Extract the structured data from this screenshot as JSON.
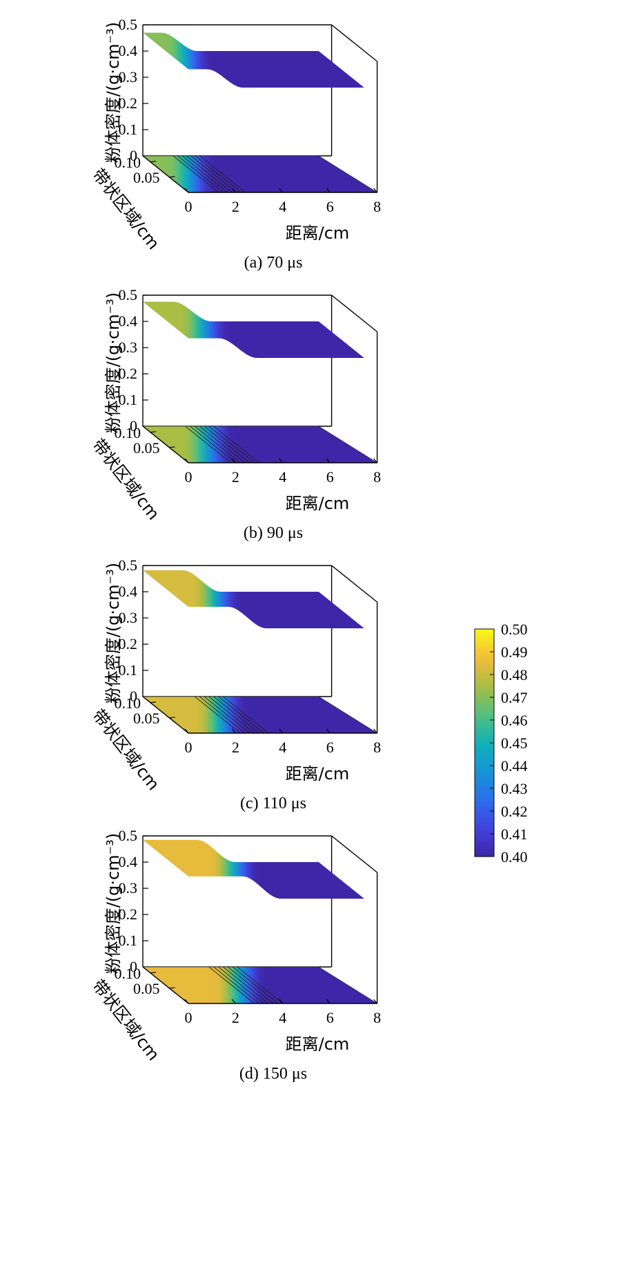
{
  "figure": {
    "colorbar": {
      "colormap": "parula",
      "range": [
        0.4,
        0.5
      ],
      "ticks": [
        "0.50",
        "0.49",
        "0.48",
        "0.47",
        "0.46",
        "0.45",
        "0.44",
        "0.43",
        "0.42",
        "0.41",
        "0.40"
      ]
    }
  },
  "chart_data": [
    {
      "type": "surface",
      "caption": "(a) 70 μs",
      "zlabel": "粉体密度/(g·cm⁻³)",
      "ylabel": "带状区域/cm",
      "xlabel": "距离/cm",
      "z_ticks": [
        "0.5",
        "0.4",
        "0.3",
        "0.2",
        "0.1",
        "0"
      ],
      "y_ticks": [
        "0.10",
        "0.05"
      ],
      "x_ticks": [
        "0",
        "2",
        "4",
        "6",
        "8"
      ],
      "zlim": [
        0,
        0.5
      ],
      "xlim": [
        0,
        8
      ],
      "ylim": [
        0,
        0.12
      ],
      "profile": {
        "high": 0.47,
        "low": 0.4,
        "front_start": 0.8,
        "front_end": 2.3
      },
      "contour_projection": true
    },
    {
      "type": "surface",
      "caption": "(b) 90 μs",
      "zlabel": "粉体密度/(g·cm⁻³)",
      "ylabel": "带状区域/cm",
      "xlabel": "距离/cm",
      "z_ticks": [
        "0.5",
        "0.4",
        "0.3",
        "0.2",
        "0.1",
        "0"
      ],
      "y_ticks": [
        "0.10",
        "0.05"
      ],
      "x_ticks": [
        "0",
        "2",
        "4",
        "6",
        "8"
      ],
      "zlim": [
        0,
        0.5
      ],
      "xlim": [
        0,
        8
      ],
      "ylim": [
        0,
        0.12
      ],
      "profile": {
        "high": 0.475,
        "low": 0.4,
        "front_start": 1.3,
        "front_end": 2.9
      },
      "contour_projection": true
    },
    {
      "type": "surface",
      "caption": "(c) 110 μs",
      "zlabel": "粉体密度/(g·cm⁻³)",
      "ylabel": "带状区域/cm",
      "xlabel": "距离/cm",
      "z_ticks": [
        "0.5",
        "0.4",
        "0.3",
        "0.2",
        "0.1",
        "0"
      ],
      "y_ticks": [
        "0.10",
        "0.05"
      ],
      "x_ticks": [
        "0",
        "2",
        "4",
        "6",
        "8"
      ],
      "zlim": [
        0,
        0.5
      ],
      "xlim": [
        0,
        8
      ],
      "ylim": [
        0,
        0.12
      ],
      "profile": {
        "high": 0.482,
        "low": 0.4,
        "front_start": 1.7,
        "front_end": 3.3
      },
      "contour_projection": true
    },
    {
      "type": "surface",
      "caption": "(d) 150 μs",
      "zlabel": "粉体密度/(g·cm⁻³)",
      "ylabel": "带状区域/cm",
      "xlabel": "距离/cm",
      "z_ticks": [
        "0.5",
        "0.4",
        "0.3",
        "0.2",
        "0.1",
        "0"
      ],
      "y_ticks": [
        "0.10",
        "0.05"
      ],
      "x_ticks": [
        "0",
        "2",
        "4",
        "6",
        "8"
      ],
      "zlim": [
        0,
        0.5
      ],
      "xlim": [
        0,
        8
      ],
      "ylim": [
        0,
        0.12
      ],
      "profile": {
        "high": 0.485,
        "low": 0.4,
        "front_start": 2.3,
        "front_end": 3.9
      },
      "contour_projection": true
    }
  ]
}
